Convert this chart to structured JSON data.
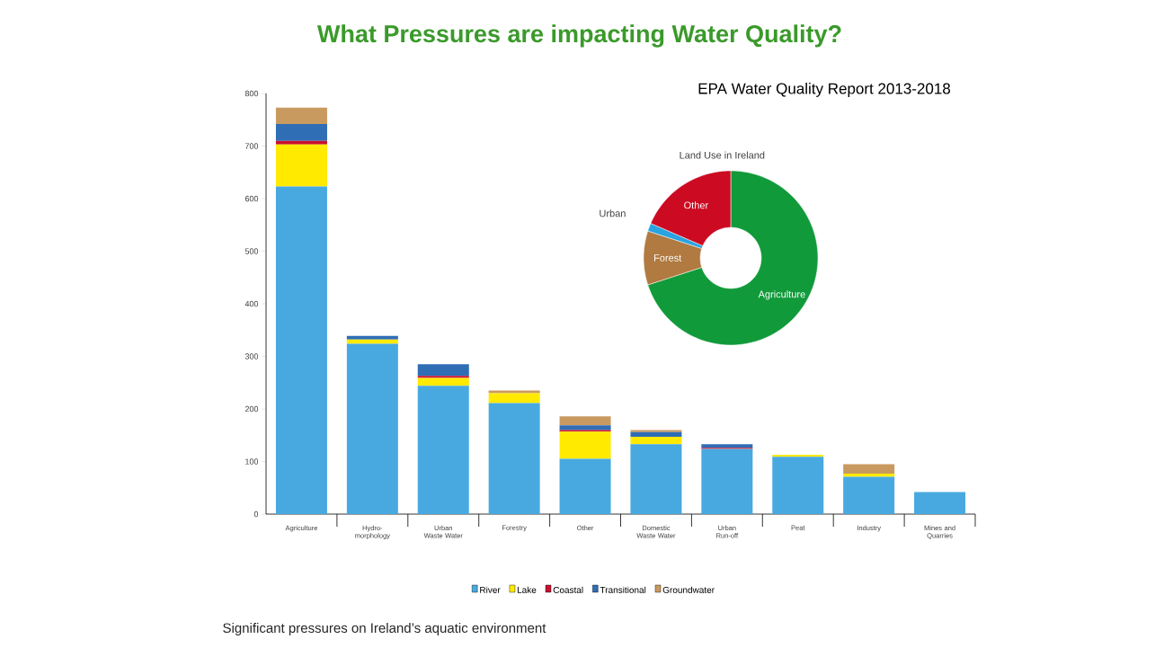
{
  "chart_data": [
    {
      "type": "bar",
      "title": "What Pressures are impacting Water Quality?",
      "subtitle": "EPA Water Quality Report 2013-2018",
      "annotations": [
        "Significant pressures on Ireland’s aquatic environment"
      ],
      "categories": [
        "Agriculture",
        "Hydro-morphology",
        "Urban Waste Water",
        "Forestry",
        "Other",
        "Domestic Waste Water",
        "Urban Run-off",
        "Peat",
        "Industry",
        "Mines and Quarries"
      ],
      "stacked": true,
      "legend": "bottom",
      "ylim": [
        0,
        800
      ],
      "yticks": [
        0,
        100,
        200,
        300,
        400,
        500,
        600,
        700,
        800
      ],
      "series": [
        {
          "name": "River",
          "color": "#48a9e0",
          "values": [
            623,
            324,
            244,
            211,
            105,
            133,
            124,
            109,
            71,
            42
          ]
        },
        {
          "name": "Lake",
          "color": "#ffea00",
          "values": [
            80,
            8,
            15,
            19,
            52,
            14,
            0,
            4,
            6,
            0
          ]
        },
        {
          "name": "Coastal",
          "color": "#c8102e",
          "values": [
            7,
            0,
            4,
            0,
            3,
            0,
            2,
            0,
            0,
            0
          ]
        },
        {
          "name": "Transitional",
          "color": "#2f6db5",
          "values": [
            32,
            7,
            22,
            0,
            9,
            9,
            7,
            0,
            0,
            0
          ]
        },
        {
          "name": "Groundwater",
          "color": "#c99a60",
          "values": [
            31,
            0,
            0,
            5,
            17,
            4,
            0,
            0,
            18,
            0
          ]
        }
      ]
    },
    {
      "type": "donut",
      "title": "Land Use in Ireland",
      "categories": [
        "Agriculture",
        "Forest",
        "Urban",
        "Other"
      ],
      "values": [
        70,
        10,
        1.5,
        18.5
      ],
      "colors": [
        "#119a3a",
        "#b07a40",
        "#2aa3e0",
        "#cc0a22"
      ]
    }
  ]
}
